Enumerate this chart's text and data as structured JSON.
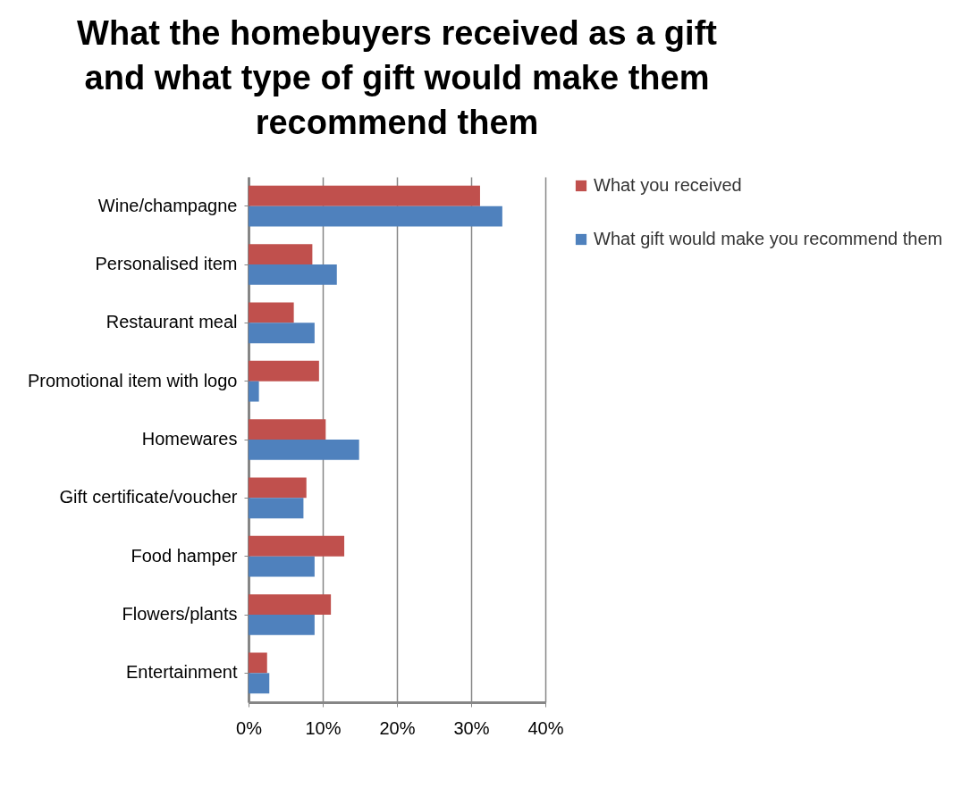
{
  "chart_data": {
    "type": "bar",
    "orientation": "horizontal",
    "title": "What the homebuyers received as a gift and what type of gift would make them recommend them",
    "categories": [
      "Wine/champagne",
      "Personalised item",
      "Restaurant meal",
      "Promotional item with logo",
      "Homewares",
      "Gift certificate/voucher",
      "Food hamper",
      "Flowers/plants",
      "Entertainment"
    ],
    "series": [
      {
        "name": "What you received",
        "color": "#c0504d",
        "values": [
          31.2,
          8.6,
          6.1,
          9.5,
          10.4,
          7.8,
          12.9,
          11.1,
          2.5
        ]
      },
      {
        "name": "What gift would make you recommend them",
        "color": "#4f81bd",
        "values": [
          34.2,
          11.9,
          8.9,
          1.4,
          14.9,
          7.4,
          8.9,
          8.9,
          2.8
        ]
      }
    ],
    "xlim": [
      0,
      40
    ],
    "xticks": [
      {
        "value": 0,
        "label": "0%"
      },
      {
        "value": 10,
        "label": "10%"
      },
      {
        "value": 20,
        "label": "20%"
      },
      {
        "value": 30,
        "label": "30%"
      },
      {
        "value": 40,
        "label": "40%"
      }
    ],
    "grid": "x",
    "legend": "right"
  }
}
